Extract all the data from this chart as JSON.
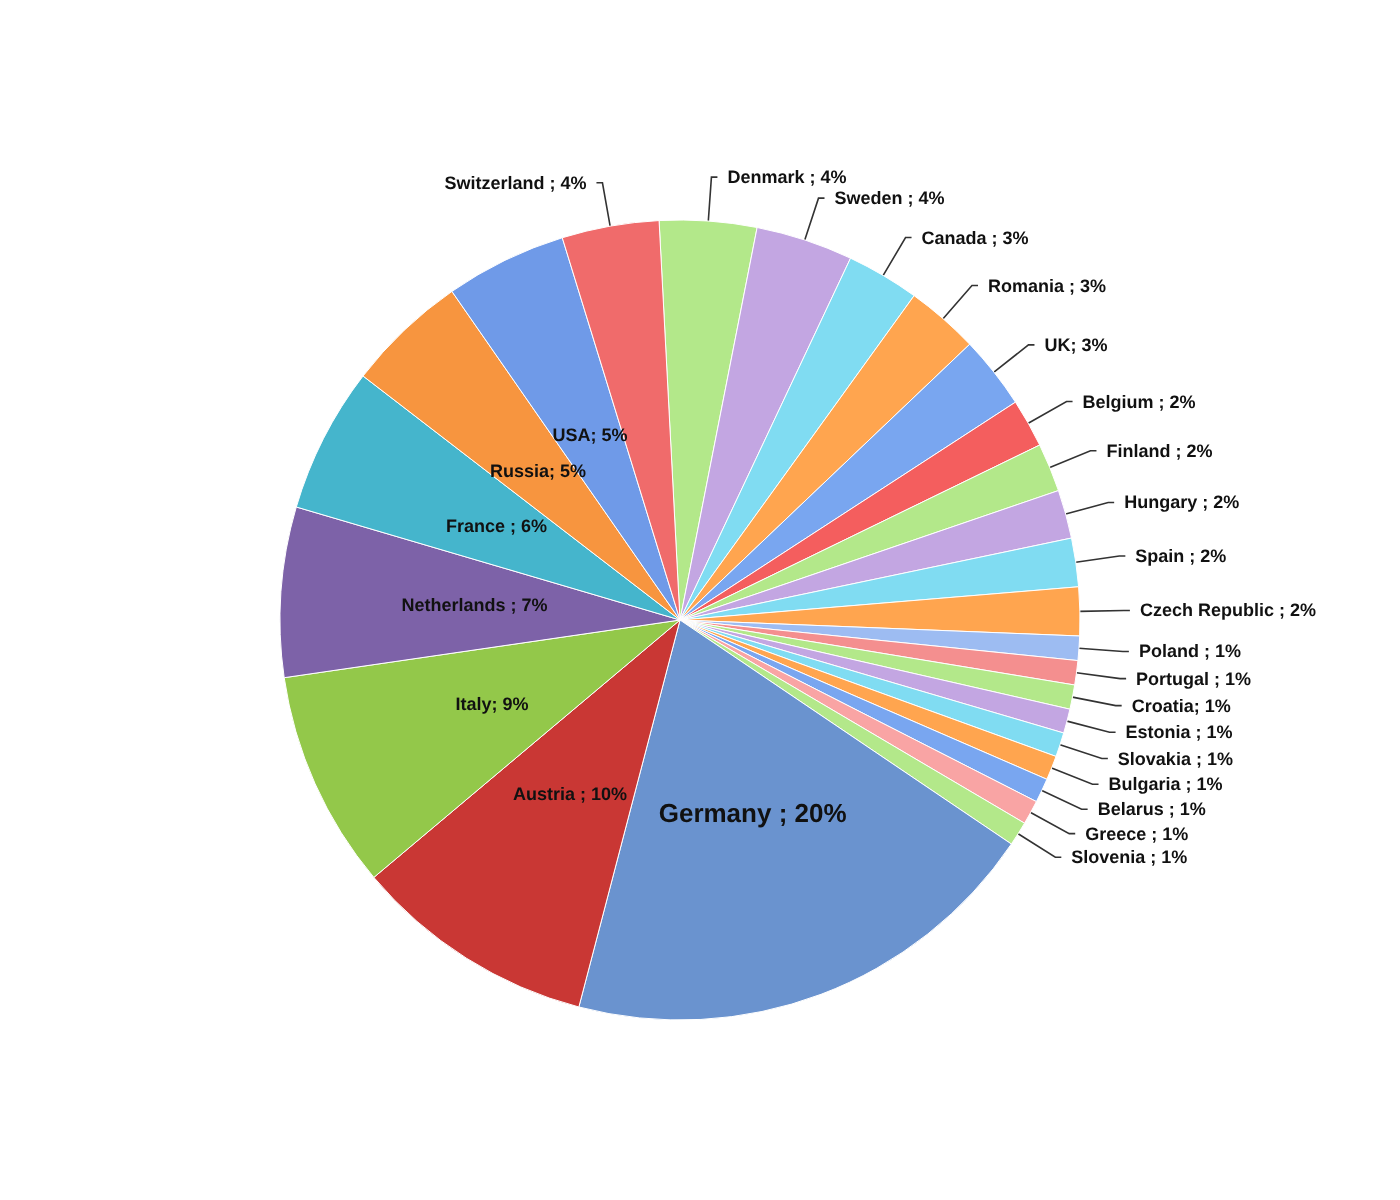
{
  "chart_data": {
    "type": "pie",
    "categories": [
      "Denmark",
      "Sweden",
      "Canada",
      "Romania",
      "UK",
      "Belgium",
      "Finland",
      "Hungary",
      "Spain",
      "Czech Republic",
      "Poland",
      "Portugal",
      "Croatia",
      "Estonia",
      "Slovakia",
      "Bulgaria",
      "Belarus",
      "Greece",
      "Slovenia",
      "Germany",
      "Austria",
      "Italy",
      "Netherlands",
      "France",
      "Russia",
      "USA",
      "Switzerland"
    ],
    "values": [
      4,
      4,
      3,
      3,
      3,
      2,
      2,
      2,
      2,
      2,
      1,
      1,
      1,
      1,
      1,
      1,
      1,
      1,
      1,
      20,
      10,
      9,
      7,
      6,
      5,
      5,
      4
    ],
    "value_labels": [
      " ; 4%",
      " ; 4%",
      " ; 3%",
      " ; 3%",
      "; 3%",
      " ; 2%",
      " ; 2%",
      " ; 2%",
      " ; 2%",
      " ; 2%",
      " ; 1%",
      " ; 1%",
      "; 1%",
      " ; 1%",
      " ; 1%",
      " ; 1%",
      " ; 1%",
      " ; 1%",
      " ; 1%",
      " ; 20%",
      " ; 10%",
      "; 9%",
      " ; 7%",
      " ; 6%",
      "; 5%",
      "; 5%",
      " ; 4%"
    ],
    "colors": [
      "#b3e88a",
      "#c3a6e2",
      "#80dcf2",
      "#ffa54f",
      "#79a6f0",
      "#f45e5e",
      "#b3e88a",
      "#c3a6e2",
      "#80dcf2",
      "#ffa54f",
      "#9dbcf2",
      "#f48f8f",
      "#b3e88a",
      "#c3a6e2",
      "#80dcf2",
      "#ffa54f",
      "#79a6f0",
      "#f9a4a4",
      "#b3e88a",
      "#6a93cf",
      "#c93734",
      "#93c84a",
      "#7d62a8",
      "#45b5cc",
      "#f7953f",
      "#6f9ae8",
      "#f06b6b"
    ],
    "legend": false
  }
}
